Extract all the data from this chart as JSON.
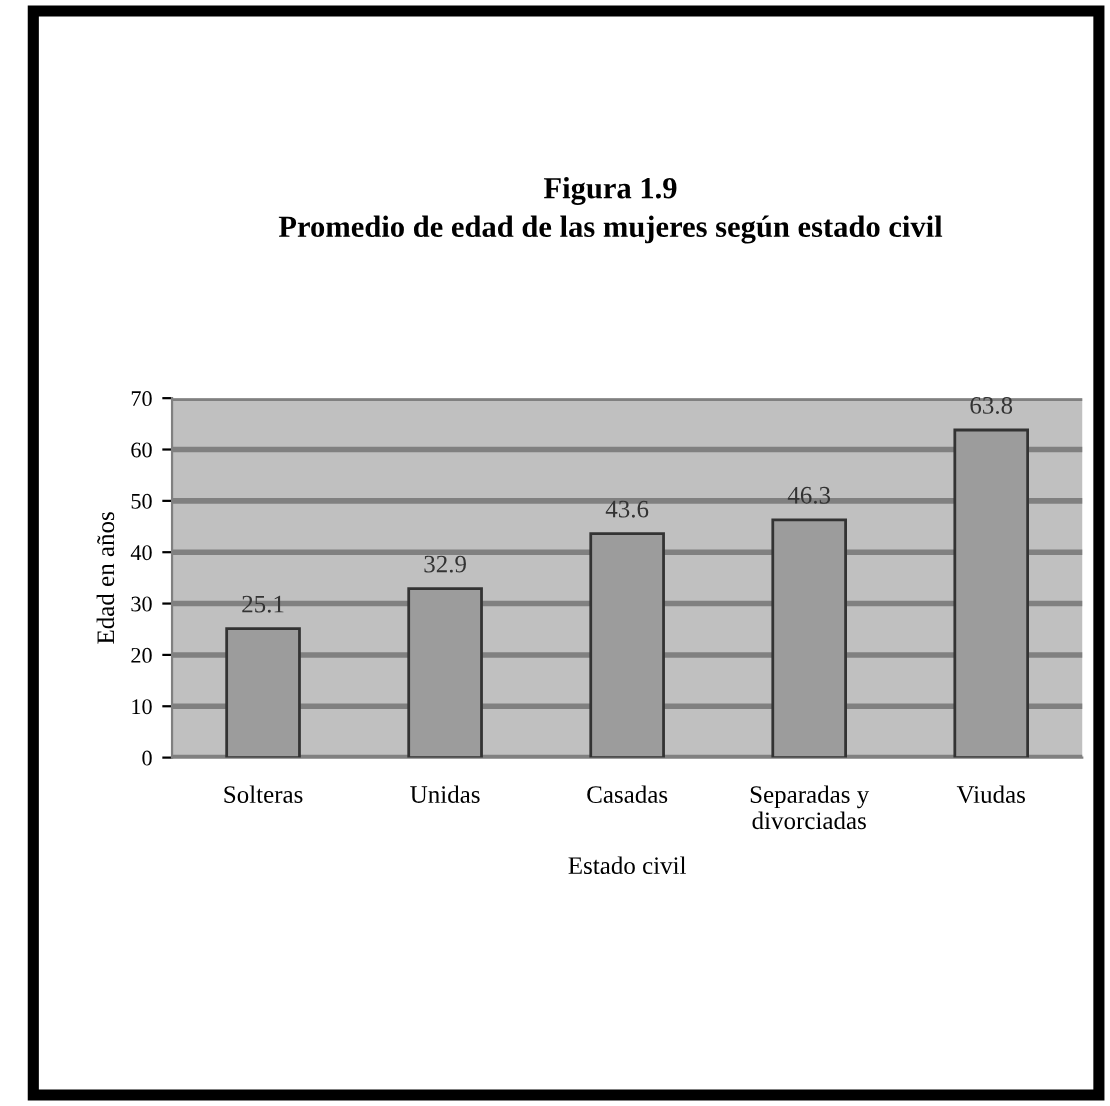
{
  "chart_data": {
    "type": "bar",
    "title": "Figura 1.9\nPromedio de edad de las mujeres según estado civil",
    "xlabel": "Estado civil",
    "ylabel": "Edad en años",
    "categories": [
      "Solteras",
      "Unidas",
      "Casadas",
      "Separadas y\ndivorciadas",
      "Viudas"
    ],
    "values": [
      25.1,
      32.9,
      43.6,
      46.3,
      63.8
    ],
    "color": "#9c9c9c",
    "ylim": [
      0,
      70
    ],
    "yticks": [
      0,
      10,
      20,
      30,
      40,
      50,
      60,
      70
    ],
    "grid": "y",
    "data_labels": true
  }
}
